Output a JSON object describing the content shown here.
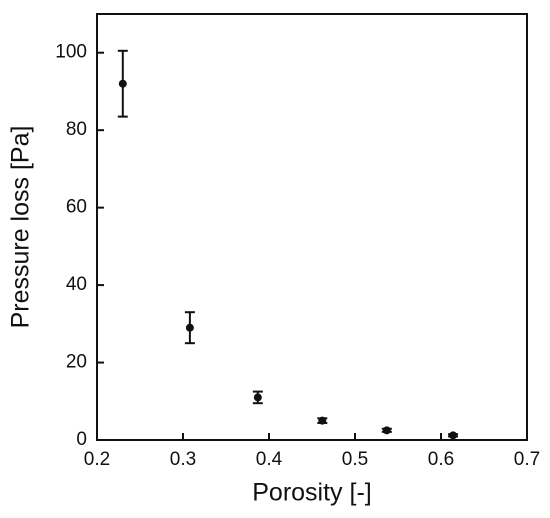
{
  "chart_data": {
    "type": "scatter",
    "x_label": "Porosity [-]",
    "y_label": "Pressure loss [Pa]",
    "x": [
      0.23,
      0.308,
      0.387,
      0.462,
      0.537,
      0.614
    ],
    "values": [
      92,
      29,
      11,
      5,
      2.5,
      1.2
    ],
    "errors": [
      8.5,
      4,
      1.5,
      0.6,
      0.4,
      0.3
    ],
    "color": "#111111",
    "xlim": [
      0.2,
      0.7
    ],
    "xticks": [
      0.2,
      0.3,
      0.4,
      0.5,
      0.6,
      0.7
    ],
    "ylim": [
      0,
      110
    ],
    "yticks": [
      0,
      20,
      40,
      60,
      80,
      100
    ]
  }
}
